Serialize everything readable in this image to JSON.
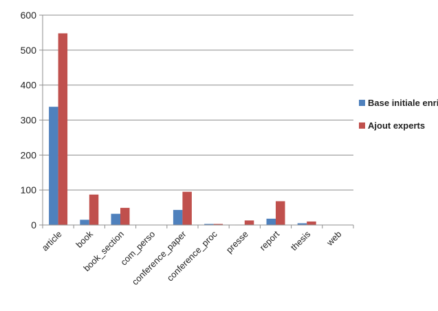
{
  "chart_data": {
    "type": "bar",
    "categories": [
      "article",
      "book",
      "book_section",
      "com_perso",
      "conference_paper",
      "conference_proc",
      "presse",
      "report",
      "thesis",
      "web"
    ],
    "series": [
      {
        "name": "Base initiale enrichie",
        "color": "#4f81bd",
        "values": [
          338,
          15,
          32,
          0,
          43,
          3,
          1,
          18,
          5,
          0
        ]
      },
      {
        "name": "Ajout experts",
        "color": "#c0504d",
        "values": [
          548,
          87,
          49,
          0,
          95,
          3,
          13,
          68,
          10,
          0
        ]
      }
    ],
    "ylim": [
      0,
      600
    ],
    "yticks": [
      0,
      100,
      200,
      300,
      400,
      500,
      600
    ],
    "grid": true,
    "legend": "right"
  }
}
